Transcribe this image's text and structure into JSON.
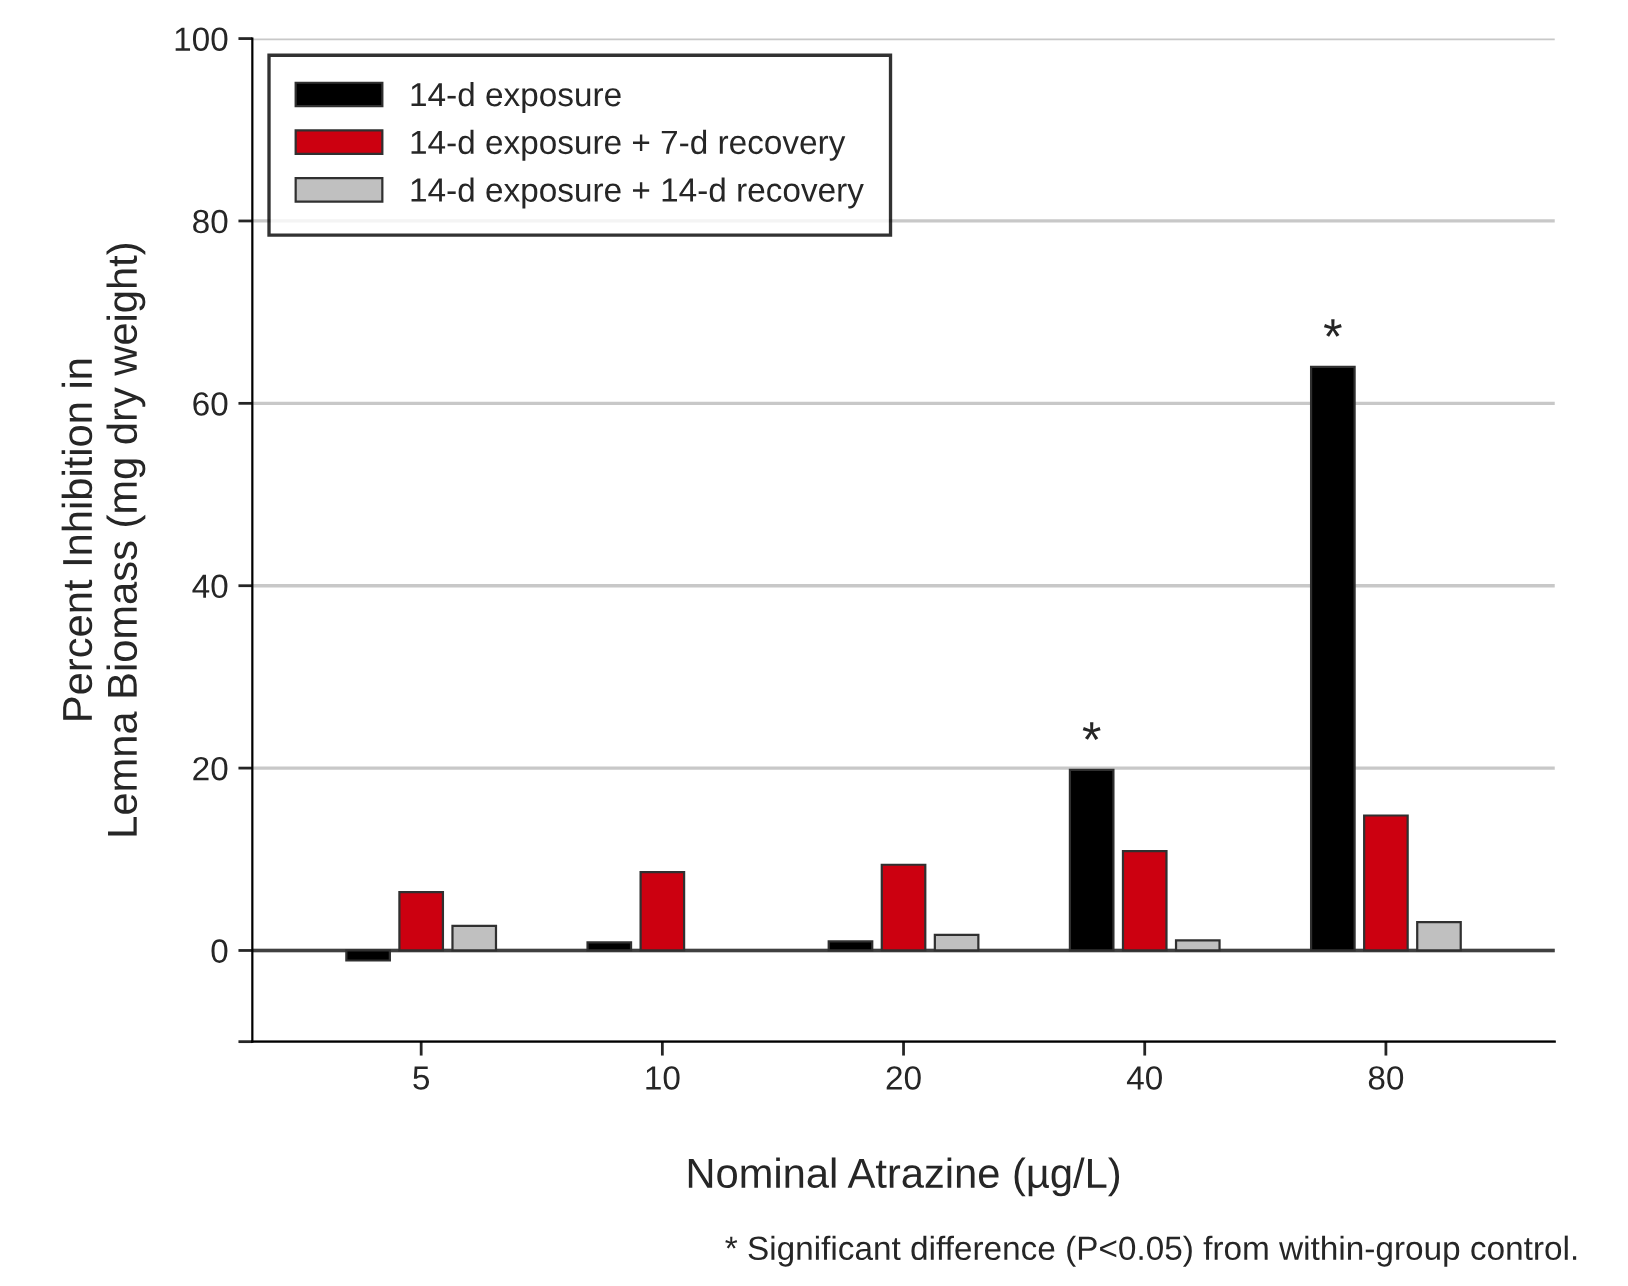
{
  "chart_data": {
    "type": "bar",
    "xlabel": "Nominal Atrazine (µg/L)",
    "ylabel": "Percent Inhibition in\nLemna Biomass (mg dry weight)",
    "categories": [
      "5",
      "10",
      "20",
      "40",
      "80"
    ],
    "series": [
      {
        "name": "14-d exposure",
        "color": "#000000",
        "values": [
          -1.1,
          0.9,
          1.0,
          19.8,
          64.0
        ],
        "value_labels": [
          null,
          null,
          null,
          "*",
          "*"
        ]
      },
      {
        "name": "14-d exposure + 7-d recovery",
        "color": "#cc0010",
        "values": [
          6.4,
          8.6,
          9.4,
          10.9,
          14.8
        ]
      },
      {
        "name": "14-d exposure + 14-d recovery",
        "color": "#c0c0c0",
        "values": [
          2.7,
          null,
          1.7,
          1.1,
          3.1
        ]
      }
    ],
    "ylim": [
      -10,
      100
    ],
    "yticks": [
      {
        "value": -10,
        "label": null
      },
      0,
      20,
      40,
      60,
      80,
      100
    ],
    "grid": "y",
    "legend": "top left",
    "ref_lines": [
      {
        "axis": "y",
        "value": 0,
        "color": "#404040"
      }
    ],
    "annotations": [
      "* Significant difference (P<0.05) from within-group control."
    ]
  }
}
